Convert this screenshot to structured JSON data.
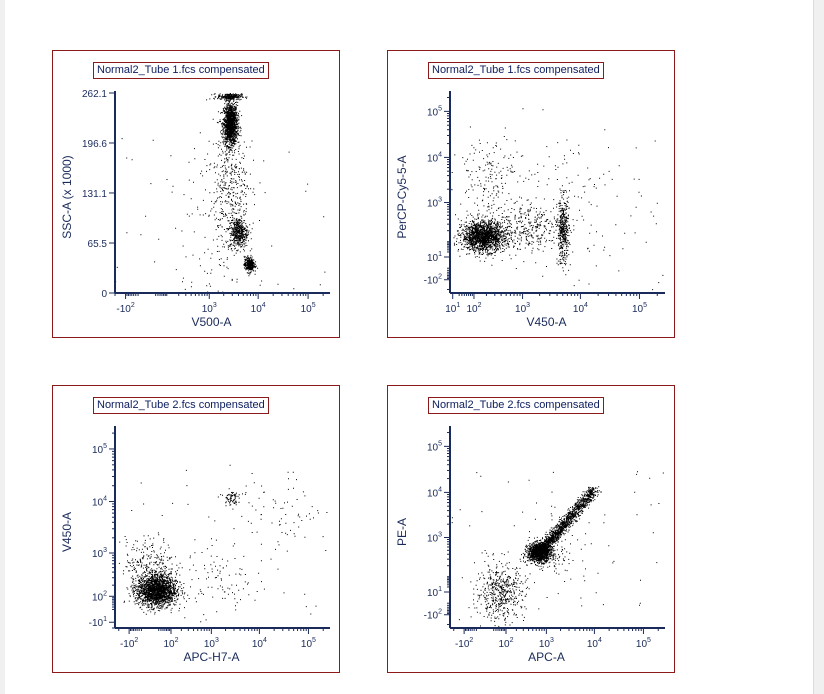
{
  "chart_data": [
    {
      "type": "scatter",
      "title": "Normal2_Tube 1.fcs compensated",
      "xlabel": "V500-A",
      "ylabel": "SSC-A (x 1000)",
      "xscale": "biexponential",
      "yscale": "linear",
      "xticks": [
        {
          "v": -100,
          "b": "-10",
          "e": "2"
        },
        {
          "v": 1000,
          "b": "10",
          "e": "3"
        },
        {
          "v": 10000,
          "b": "10",
          "e": "4"
        },
        {
          "v": 100000,
          "b": "10",
          "e": "5"
        }
      ],
      "yticks": [
        {
          "v": 0,
          "t": "0"
        },
        {
          "v": 65.5,
          "t": "65.5"
        },
        {
          "v": 131.1,
          "t": "131.1"
        },
        {
          "v": 196.6,
          "t": "196.6"
        },
        {
          "v": 262.1,
          "t": "262.1"
        }
      ],
      "xlim": [
        -200,
        250000
      ],
      "ylim": [
        0,
        262.1
      ],
      "clusters": [
        {
          "x": 2700,
          "y": 222,
          "sx": 0.07,
          "sy": 14,
          "n": 1400
        },
        {
          "x": 2600,
          "y": 258,
          "sx": 0.12,
          "sy": 2,
          "n": 250
        },
        {
          "x": 4000,
          "y": 80,
          "sx": 0.09,
          "sy": 10,
          "n": 420
        },
        {
          "x": 6500,
          "y": 38,
          "sx": 0.05,
          "sy": 5,
          "n": 320
        },
        {
          "x": 2800,
          "y": 140,
          "sx": 0.18,
          "sy": 40,
          "n": 350
        },
        {
          "x": 1500,
          "y": 80,
          "sx": 0.35,
          "sy": 70,
          "n": 120
        }
      ]
    },
    {
      "type": "scatter",
      "title": "Normal2_Tube 1.fcs compensated",
      "xlabel": "V450-A",
      "ylabel": "PerCP-Cy5-5-A",
      "xscale": "biexponential",
      "yscale": "biexponential",
      "xticks": [
        {
          "v": 10,
          "b": "10",
          "e": "1"
        },
        {
          "v": 100,
          "b": "10",
          "e": "2"
        },
        {
          "v": 1000,
          "b": "10",
          "e": "3"
        },
        {
          "v": 10000,
          "b": "10",
          "e": "4"
        },
        {
          "v": 100000,
          "b": "10",
          "e": "5"
        }
      ],
      "yticks": [
        {
          "v": -100,
          "b": "-10",
          "e": "2"
        },
        {
          "v": 10,
          "b": "10",
          "e": "1"
        },
        {
          "v": 1000,
          "b": "10",
          "e": "3"
        },
        {
          "v": 10000,
          "b": "10",
          "e": "4"
        },
        {
          "v": 100000,
          "b": "10",
          "e": "5"
        }
      ],
      "xlim": [
        3,
        250000
      ],
      "ylim": [
        -250,
        250000
      ],
      "clusters": [
        {
          "x": 170,
          "y": 140,
          "sx": 0.18,
          "sy": 0.16,
          "n": 1700
        },
        {
          "x": 5000,
          "y": 200,
          "sx": 0.05,
          "sy": 0.35,
          "n": 420
        },
        {
          "x": 1300,
          "y": 250,
          "sx": 0.28,
          "sy": 0.25,
          "n": 300
        },
        {
          "x": 200,
          "y": 4000,
          "sx": 0.25,
          "sy": 0.45,
          "n": 160
        },
        {
          "x": 3000,
          "y": 1000,
          "sx": 0.7,
          "sy": 0.9,
          "n": 120
        }
      ]
    },
    {
      "type": "scatter",
      "title": "Normal2_Tube 2.fcs compensated",
      "xlabel": "APC-H7-A",
      "ylabel": "V450-A",
      "xscale": "biexponential",
      "yscale": "biexponential",
      "xticks": [
        {
          "v": -100,
          "b": "-10",
          "e": "2"
        },
        {
          "v": 100,
          "b": "10",
          "e": "2"
        },
        {
          "v": 1000,
          "b": "10",
          "e": "3"
        },
        {
          "v": 10000,
          "b": "10",
          "e": "4"
        },
        {
          "v": 100000,
          "b": "10",
          "e": "5"
        }
      ],
      "yticks": [
        {
          "v": -10,
          "b": "-10",
          "e": "1"
        },
        {
          "v": 100,
          "b": "10",
          "e": "2"
        },
        {
          "v": 1000,
          "b": "10",
          "e": "3"
        },
        {
          "v": 10000,
          "b": "10",
          "e": "4"
        },
        {
          "v": 100000,
          "b": "10",
          "e": "5"
        }
      ],
      "xlim": [
        -250,
        250000
      ],
      "ylim": [
        -30,
        250000
      ],
      "clusters": [
        {
          "x": 20,
          "y": 150,
          "sx": 0.2,
          "sy": 0.15,
          "n": 1900
        },
        {
          "x": 0,
          "y": 600,
          "sx": 0.25,
          "sy": 0.25,
          "n": 250
        },
        {
          "x": 2500,
          "y": 12000,
          "sx": 0.07,
          "sy": 0.07,
          "n": 70
        },
        {
          "x": 1500,
          "y": 300,
          "sx": 0.35,
          "sy": 0.35,
          "n": 80
        },
        {
          "x": 20000,
          "y": 5000,
          "sx": 0.45,
          "sy": 0.45,
          "n": 70
        }
      ]
    },
    {
      "type": "scatter",
      "title": "Normal2_Tube 2.fcs compensated",
      "xlabel": "APC-A",
      "ylabel": "PE-A",
      "xscale": "biexponential",
      "yscale": "biexponential",
      "xticks": [
        {
          "v": -100,
          "b": "-10",
          "e": "2"
        },
        {
          "v": 100,
          "b": "10",
          "e": "2"
        },
        {
          "v": 1000,
          "b": "10",
          "e": "3"
        },
        {
          "v": 10000,
          "b": "10",
          "e": "4"
        },
        {
          "v": 100000,
          "b": "10",
          "e": "5"
        }
      ],
      "yticks": [
        {
          "v": -100,
          "b": "-10",
          "e": "2"
        },
        {
          "v": 10,
          "b": "10",
          "e": "1"
        },
        {
          "v": 1000,
          "b": "10",
          "e": "3"
        },
        {
          "v": 10000,
          "b": "10",
          "e": "4"
        },
        {
          "v": 100000,
          "b": "10",
          "e": "5"
        }
      ],
      "xlim": [
        -250,
        250000
      ],
      "ylim": [
        -250,
        250000
      ],
      "clusters": [
        {
          "x": 700,
          "y": 450,
          "sx": 0.12,
          "sy": 0.1,
          "n": 1200
        },
        {
          "x": 60,
          "y": 10,
          "sx": 0.25,
          "sy": 0.3,
          "n": 500
        },
        {
          "x": 1500,
          "y": 400,
          "sx": 0.4,
          "sy": 0.4,
          "n": 100
        }
      ],
      "diagonal": {
        "from": [
          700,
          450
        ],
        "to": [
          10000,
          12000
        ],
        "n": 1500,
        "spread": 0.06
      }
    }
  ]
}
